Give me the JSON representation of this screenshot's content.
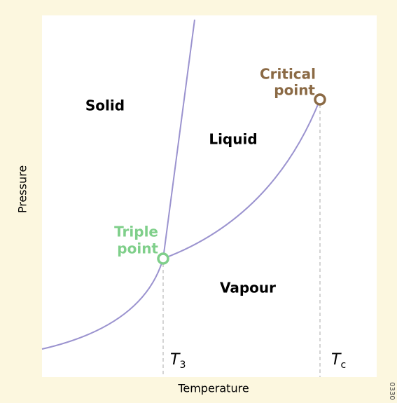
{
  "diagram": {
    "axes": {
      "y_label": "Pressure",
      "x_label": "Temperature"
    },
    "regions": [
      "Solid",
      "Liquid",
      "Vapour"
    ],
    "points": [
      {
        "label_lines": [
          "Triple",
          "point"
        ]
      },
      {
        "label_lines": [
          "Critical",
          "point"
        ]
      }
    ],
    "markers": [
      {
        "symbol": "T",
        "subscript": "3"
      },
      {
        "symbol": "T",
        "subscript": "c"
      }
    ],
    "figure_id": "0330"
  }
}
